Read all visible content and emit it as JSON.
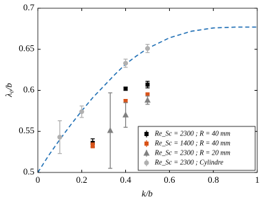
{
  "chart_data": {
    "type": "scatter",
    "xlabel": "k/b",
    "ylabel": "λ₀/b",
    "xlim": [
      0,
      1
    ],
    "ylim": [
      0.5,
      0.7
    ],
    "xticks": [
      0,
      0.2,
      0.4,
      0.6,
      0.8,
      1
    ],
    "yticks": [
      0.5,
      0.55,
      0.6,
      0.65,
      0.7
    ],
    "grid": false,
    "legend": "lower right",
    "curve": {
      "color": "#1f6fb5",
      "dashed": true,
      "x": [
        0,
        0.05,
        0.1,
        0.15,
        0.2,
        0.25,
        0.3,
        0.35,
        0.4,
        0.45,
        0.5,
        0.6,
        0.7,
        0.8,
        0.9,
        1
      ],
      "values": [
        0.5,
        0.521,
        0.54,
        0.558,
        0.575,
        0.591,
        0.605,
        0.619,
        0.632,
        0.642,
        0.651,
        0.664,
        0.672,
        0.676,
        0.677,
        0.677
      ]
    },
    "series": [
      {
        "name": "Re_Sc = 2300 ; R = 40 mm",
        "color": "#000000",
        "marker": "square",
        "x": [
          0.25,
          0.4,
          0.5
        ],
        "values": [
          0.536,
          0.602,
          0.607
        ],
        "errors": [
          0.005,
          0.002,
          0.004
        ]
      },
      {
        "name": "Re_Sc = 1400 ; R = 40 mm",
        "color": "#d95319",
        "marker": "square",
        "x": [
          0.25,
          0.4,
          0.5
        ],
        "values": [
          0.533,
          0.587,
          0.595
        ],
        "errors": [
          0.003,
          0.002,
          0.002
        ]
      },
      {
        "name": "Re_Sc = 2300 ; R = 20 mm",
        "color": "#808080",
        "marker": "triangle",
        "x": [
          0.33,
          0.4,
          0.5
        ],
        "values": [
          0.551,
          0.57,
          0.588
        ],
        "errors": [
          0.046,
          0.015,
          0.005
        ]
      },
      {
        "name": "Re_Sc = 2300 ; Cylindre",
        "color": "#b0b0b0",
        "marker": "circle",
        "x": [
          0.1,
          0.2,
          0.4,
          0.5
        ],
        "values": [
          0.543,
          0.574,
          0.633,
          0.651
        ],
        "errors": [
          0.02,
          0.007,
          0.005,
          0.005
        ]
      }
    ]
  }
}
